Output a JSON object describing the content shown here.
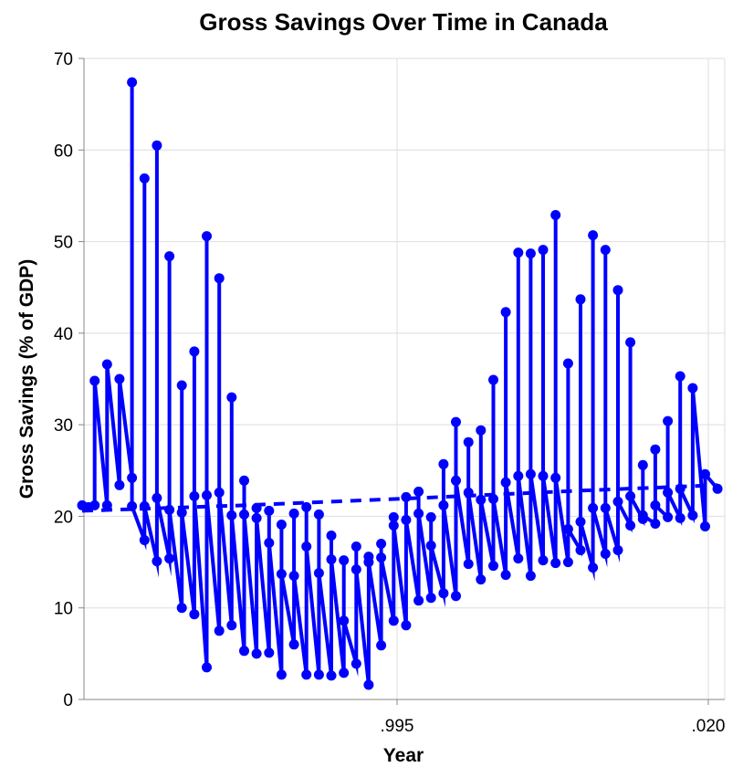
{
  "chart_data": {
    "type": "line",
    "title": "Gross Savings Over Time in Canada",
    "xlabel": "Year",
    "ylabel": "Gross Savings (% of GDP)",
    "ylim": [
      0,
      70
    ],
    "y_ticks": [
      0,
      10,
      20,
      30,
      40,
      50,
      60,
      70
    ],
    "x_tick_labels": [
      ".995",
      ".020"
    ],
    "grid": true,
    "line_color": "#0000ff",
    "series": [
      {
        "style": "solid-with-points",
        "points": [
          [
            0.0,
            21.2
          ],
          [
            0.5,
            21.0
          ],
          [
            1.0,
            21.2
          ],
          [
            1.0,
            34.8
          ],
          [
            2.0,
            21.2
          ],
          [
            2.0,
            36.6
          ],
          [
            3.0,
            23.4
          ],
          [
            3.0,
            35.0
          ],
          [
            4.0,
            24.2
          ],
          [
            4.0,
            67.4
          ],
          [
            4.0,
            21.1
          ],
          [
            5.0,
            17.4
          ],
          [
            5.0,
            56.9
          ],
          [
            5.0,
            21.1
          ],
          [
            6.0,
            15.1
          ],
          [
            6.0,
            60.5
          ],
          [
            6.0,
            22.0
          ],
          [
            7.0,
            15.4
          ],
          [
            7.0,
            48.4
          ],
          [
            7.0,
            20.7
          ],
          [
            8.0,
            10.0
          ],
          [
            8.0,
            34.3
          ],
          [
            8.0,
            20.4
          ],
          [
            9.0,
            9.3
          ],
          [
            9.0,
            38.0
          ],
          [
            9.0,
            22.2
          ],
          [
            10.0,
            3.5
          ],
          [
            10.0,
            50.6
          ],
          [
            10.0,
            22.3
          ],
          [
            11.0,
            7.5
          ],
          [
            11.0,
            46.0
          ],
          [
            11.0,
            22.6
          ],
          [
            12.0,
            8.1
          ],
          [
            12.0,
            33.0
          ],
          [
            12.0,
            20.1
          ],
          [
            13.0,
            5.3
          ],
          [
            13.0,
            23.9
          ],
          [
            13.0,
            20.2
          ],
          [
            14.0,
            5.0
          ],
          [
            14.0,
            20.9
          ],
          [
            14.0,
            19.8
          ],
          [
            15.0,
            5.1
          ],
          [
            15.0,
            20.6
          ],
          [
            15.0,
            17.1
          ],
          [
            16.0,
            2.7
          ],
          [
            16.0,
            19.1
          ],
          [
            16.0,
            13.7
          ],
          [
            17.0,
            6.0
          ],
          [
            17.0,
            20.3
          ],
          [
            17.0,
            13.5
          ],
          [
            18.0,
            2.7
          ],
          [
            18.0,
            21.0
          ],
          [
            18.0,
            16.7
          ],
          [
            19.0,
            2.7
          ],
          [
            19.0,
            20.2
          ],
          [
            19.0,
            13.8
          ],
          [
            20.0,
            2.6
          ],
          [
            20.0,
            17.9
          ],
          [
            20.0,
            15.3
          ],
          [
            21.0,
            2.9
          ],
          [
            21.0,
            15.2
          ],
          [
            21.0,
            8.6
          ],
          [
            22.0,
            3.9
          ],
          [
            22.0,
            16.7
          ],
          [
            22.0,
            14.2
          ],
          [
            23.0,
            1.6
          ],
          [
            23.0,
            15.6
          ],
          [
            23.0,
            15.0
          ],
          [
            24.0,
            5.9
          ],
          [
            24.0,
            17.0
          ],
          [
            24.0,
            15.5
          ],
          [
            25.0,
            8.6
          ],
          [
            25.0,
            19.9
          ],
          [
            25.0,
            19.0
          ],
          [
            26.0,
            8.1
          ],
          [
            26.0,
            22.1
          ],
          [
            26.0,
            19.6
          ],
          [
            27.0,
            10.8
          ],
          [
            27.0,
            22.7
          ],
          [
            27.0,
            20.3
          ],
          [
            28.0,
            11.1
          ],
          [
            28.0,
            19.9
          ],
          [
            28.0,
            16.8
          ],
          [
            29.0,
            11.6
          ],
          [
            29.0,
            25.7
          ],
          [
            29.0,
            21.2
          ],
          [
            30.0,
            11.3
          ],
          [
            30.0,
            30.3
          ],
          [
            30.0,
            23.9
          ],
          [
            31.0,
            14.8
          ],
          [
            31.0,
            28.1
          ],
          [
            31.0,
            22.6
          ],
          [
            32.0,
            13.1
          ],
          [
            32.0,
            29.4
          ],
          [
            32.0,
            21.8
          ],
          [
            33.0,
            14.6
          ],
          [
            33.0,
            34.9
          ],
          [
            33.0,
            21.9
          ],
          [
            34.0,
            13.6
          ],
          [
            34.0,
            42.3
          ],
          [
            34.0,
            23.7
          ],
          [
            35.0,
            15.4
          ],
          [
            35.0,
            48.8
          ],
          [
            35.0,
            24.4
          ],
          [
            36.0,
            13.5
          ],
          [
            36.0,
            48.7
          ],
          [
            36.0,
            24.6
          ],
          [
            37.0,
            15.2
          ],
          [
            37.0,
            49.1
          ],
          [
            37.0,
            24.4
          ],
          [
            38.0,
            14.9
          ],
          [
            38.0,
            52.9
          ],
          [
            38.0,
            24.2
          ],
          [
            39.0,
            15.0
          ],
          [
            39.0,
            36.7
          ],
          [
            39.0,
            18.6
          ],
          [
            40.0,
            16.3
          ],
          [
            40.0,
            43.7
          ],
          [
            40.0,
            19.4
          ],
          [
            41.0,
            14.4
          ],
          [
            41.0,
            50.7
          ],
          [
            41.0,
            20.9
          ],
          [
            42.0,
            15.9
          ],
          [
            42.0,
            49.1
          ],
          [
            42.0,
            20.9
          ],
          [
            43.0,
            16.3
          ],
          [
            43.0,
            44.7
          ],
          [
            43.0,
            21.6
          ],
          [
            44.0,
            19.0
          ],
          [
            44.0,
            39.0
          ],
          [
            44.0,
            22.2
          ],
          [
            45.0,
            19.7
          ],
          [
            45.0,
            25.6
          ],
          [
            45.0,
            20.1
          ],
          [
            46.0,
            19.2
          ],
          [
            46.0,
            27.3
          ],
          [
            46.0,
            21.2
          ],
          [
            47.0,
            19.9
          ],
          [
            47.0,
            30.4
          ],
          [
            47.0,
            22.6
          ],
          [
            48.0,
            19.8
          ],
          [
            48.0,
            35.3
          ],
          [
            48.0,
            23.0
          ],
          [
            49.0,
            20.1
          ],
          [
            49.0,
            34.0
          ],
          [
            50.0,
            18.9
          ],
          [
            50.0,
            24.6
          ],
          [
            51.0,
            23.0
          ]
        ]
      },
      {
        "style": "dashed",
        "points": [
          [
            0.0,
            20.6
          ],
          [
            13.0,
            21.2
          ],
          [
            27.0,
            22.0
          ],
          [
            40.0,
            22.8
          ],
          [
            51.0,
            23.4
          ]
        ]
      }
    ]
  }
}
